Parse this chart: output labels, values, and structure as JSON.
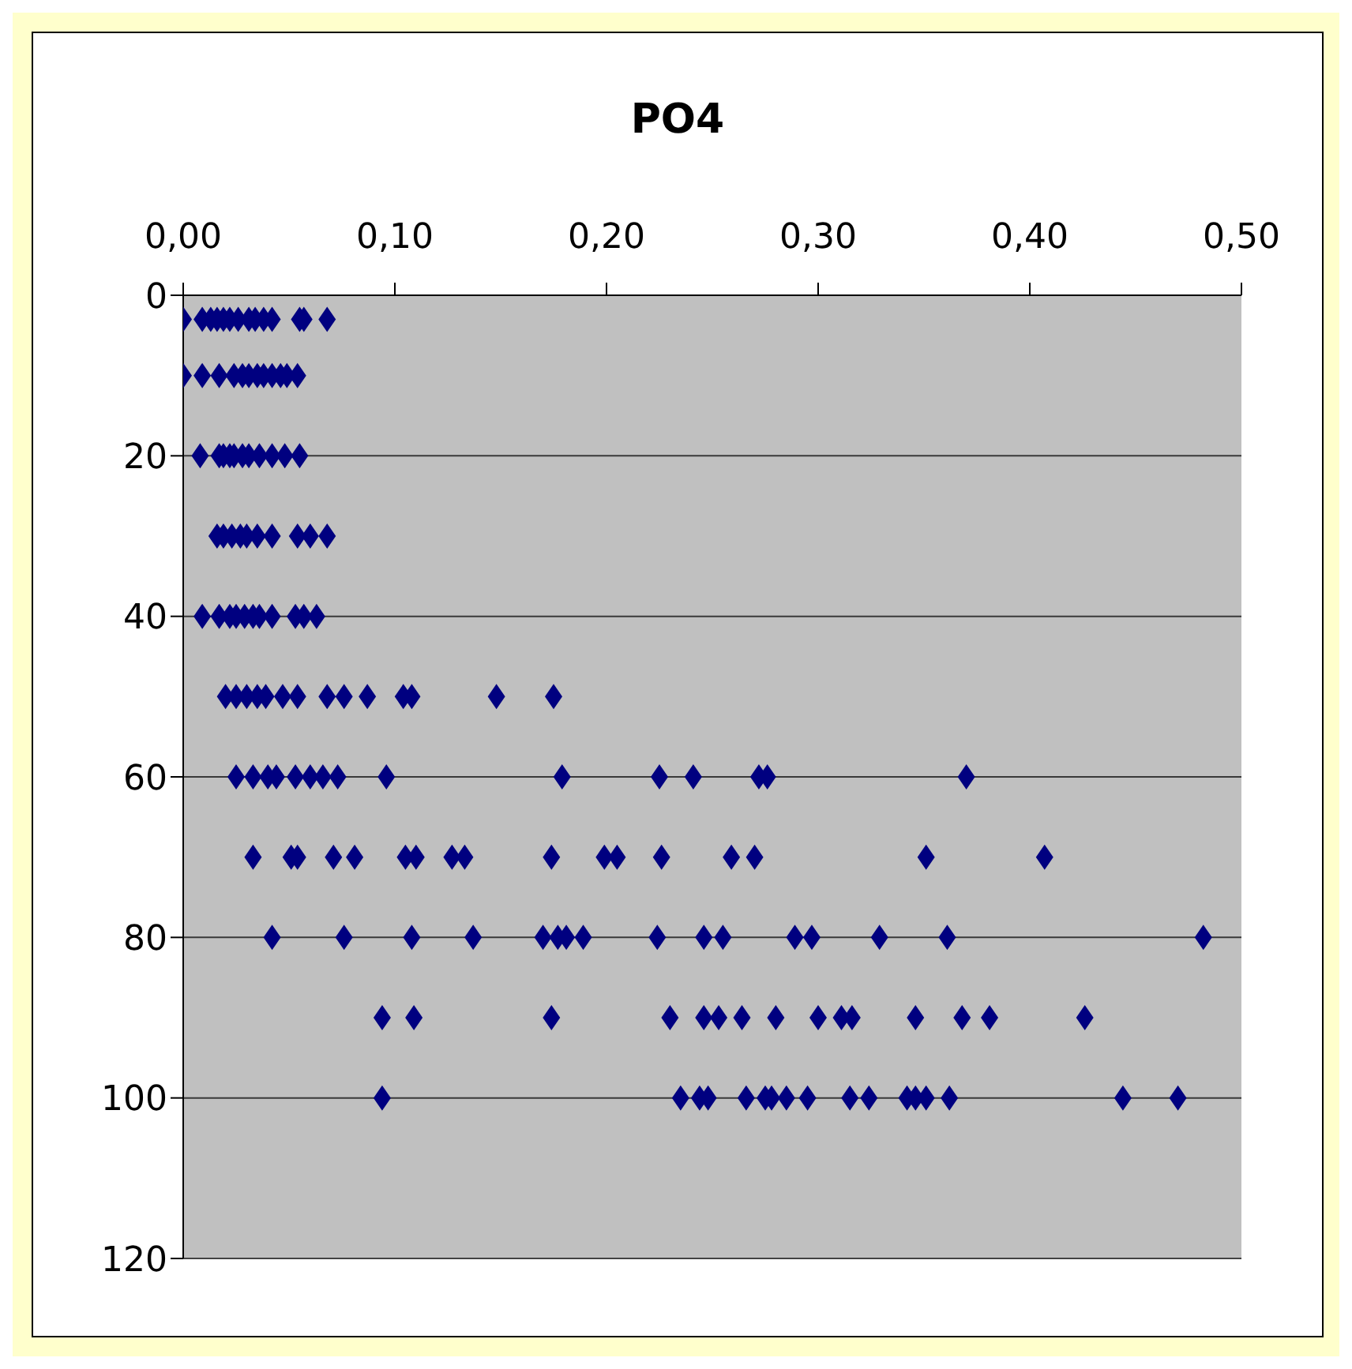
{
  "chart_data": {
    "type": "scatter",
    "title": "PO4",
    "marker": "diamond",
    "grid": "y",
    "xlim": [
      0,
      0.5
    ],
    "xticks": [
      {
        "value": 0,
        "label": "0,00"
      },
      {
        "value": 0.1,
        "label": "0,10"
      },
      {
        "value": 0.2,
        "label": "0,20"
      },
      {
        "value": 0.3,
        "label": "0,30"
      },
      {
        "value": 0.4,
        "label": "0,40"
      },
      {
        "value": 0.5,
        "label": "0,50"
      }
    ],
    "ylim": [
      120,
      0
    ],
    "yticks": [
      0,
      20,
      40,
      60,
      80,
      100,
      120
    ],
    "series": [
      {
        "color": "#000080",
        "x": [
          0.0,
          0.009,
          0.013,
          0.016,
          0.019,
          0.022,
          0.026,
          0.031,
          0.034,
          0.038,
          0.042,
          0.055,
          0.057,
          0.068,
          0.0,
          0.009,
          0.017,
          0.024,
          0.028,
          0.031,
          0.035,
          0.038,
          0.042,
          0.046,
          0.049,
          0.054,
          0.008,
          0.017,
          0.019,
          0.022,
          0.024,
          0.028,
          0.031,
          0.036,
          0.042,
          0.048,
          0.055,
          0.016,
          0.019,
          0.023,
          0.027,
          0.03,
          0.035,
          0.042,
          0.054,
          0.06,
          0.068,
          0.009,
          0.017,
          0.022,
          0.025,
          0.029,
          0.033,
          0.036,
          0.042,
          0.053,
          0.057,
          0.063,
          0.02,
          0.025,
          0.03,
          0.035,
          0.039,
          0.047,
          0.054,
          0.068,
          0.076,
          0.087,
          0.104,
          0.108,
          0.148,
          0.175,
          0.025,
          0.033,
          0.04,
          0.044,
          0.053,
          0.06,
          0.066,
          0.073,
          0.096,
          0.179,
          0.225,
          0.241,
          0.272,
          0.276,
          0.37,
          0.033,
          0.051,
          0.054,
          0.071,
          0.081,
          0.105,
          0.11,
          0.127,
          0.133,
          0.174,
          0.199,
          0.205,
          0.226,
          0.259,
          0.27,
          0.351,
          0.407,
          0.042,
          0.076,
          0.108,
          0.137,
          0.17,
          0.177,
          0.181,
          0.189,
          0.224,
          0.246,
          0.255,
          0.289,
          0.297,
          0.329,
          0.361,
          0.482,
          0.094,
          0.109,
          0.174,
          0.23,
          0.246,
          0.253,
          0.264,
          0.28,
          0.3,
          0.311,
          0.316,
          0.346,
          0.368,
          0.381,
          0.426,
          0.094,
          0.235,
          0.244,
          0.248,
          0.266,
          0.275,
          0.278,
          0.285,
          0.295,
          0.315,
          0.324,
          0.342,
          0.346,
          0.351,
          0.362,
          0.444,
          0.47
        ],
        "values": [
          3,
          3,
          3,
          3,
          3,
          3,
          3,
          3,
          3,
          3,
          3,
          3,
          3,
          3,
          10,
          10,
          10,
          10,
          10,
          10,
          10,
          10,
          10,
          10,
          10,
          10,
          20,
          20,
          20,
          20,
          20,
          20,
          20,
          20,
          20,
          20,
          20,
          30,
          30,
          30,
          30,
          30,
          30,
          30,
          30,
          30,
          30,
          40,
          40,
          40,
          40,
          40,
          40,
          40,
          40,
          40,
          40,
          40,
          50,
          50,
          50,
          50,
          50,
          50,
          50,
          50,
          50,
          50,
          50,
          50,
          50,
          50,
          60,
          60,
          60,
          60,
          60,
          60,
          60,
          60,
          60,
          60,
          60,
          60,
          60,
          60,
          60,
          70,
          70,
          70,
          70,
          70,
          70,
          70,
          70,
          70,
          70,
          70,
          70,
          70,
          70,
          70,
          70,
          70,
          80,
          80,
          80,
          80,
          80,
          80,
          80,
          80,
          80,
          80,
          80,
          80,
          80,
          80,
          80,
          80,
          90,
          90,
          90,
          90,
          90,
          90,
          90,
          90,
          90,
          90,
          90,
          90,
          90,
          90,
          90,
          100,
          100,
          100,
          100,
          100,
          100,
          100,
          100,
          100,
          100,
          100,
          100,
          100,
          100,
          100,
          100,
          100
        ]
      }
    ]
  }
}
